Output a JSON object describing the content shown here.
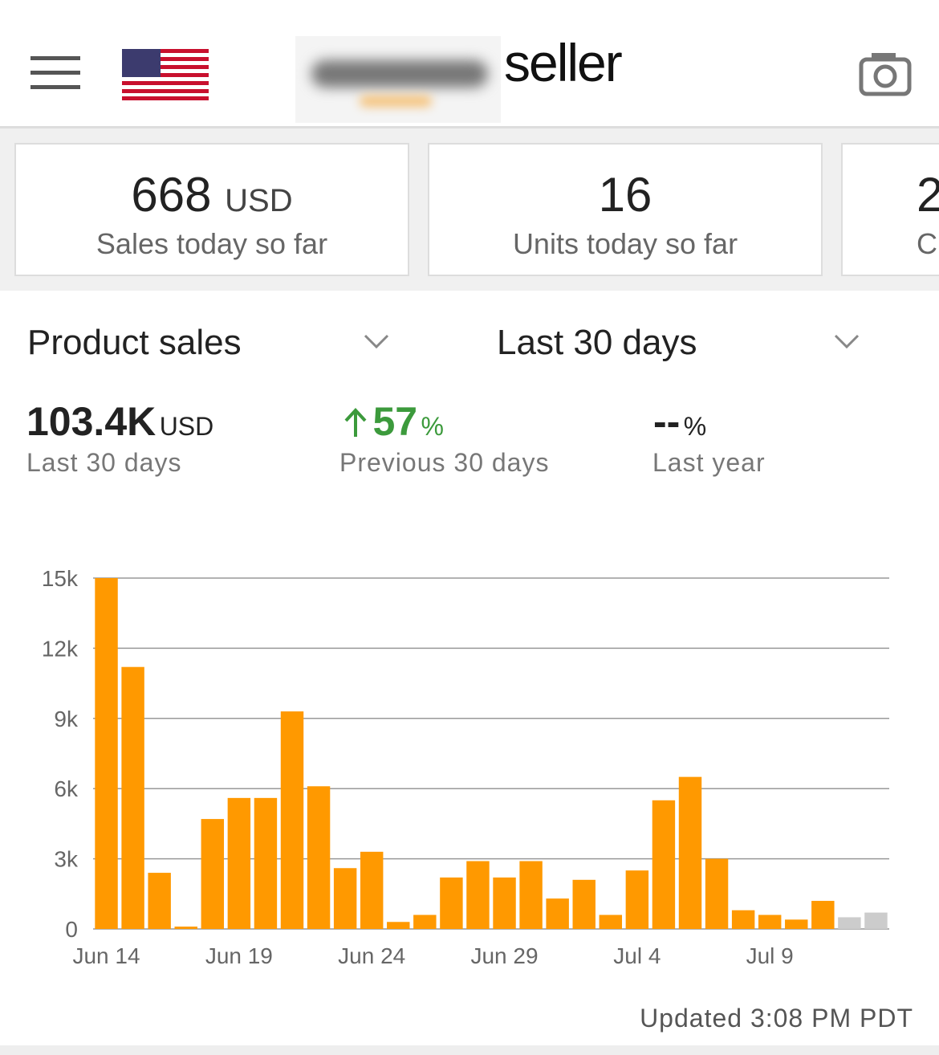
{
  "header": {
    "brand": "seller"
  },
  "cards": [
    {
      "value": "668",
      "unit": "USD",
      "label": "Sales today so far"
    },
    {
      "value": "16",
      "label": "Units today so far"
    },
    {
      "value": "2",
      "label": "C"
    }
  ],
  "filters": {
    "metric": "Product sales",
    "period": "Last 30 days"
  },
  "summary": {
    "total": {
      "value": "103.4K",
      "unit": "USD",
      "label": "Last 30 days"
    },
    "previous": {
      "value": "57",
      "unit": "%",
      "label": "Previous 30 days"
    },
    "last_year": {
      "value": "--",
      "unit": "%",
      "label": "Last year"
    }
  },
  "chart_data": {
    "type": "bar",
    "categories": [
      "Jun 14",
      null,
      null,
      null,
      null,
      "Jun 19",
      null,
      null,
      null,
      null,
      "Jun 24",
      null,
      null,
      null,
      null,
      "Jun 29",
      null,
      null,
      null,
      null,
      "Jul 4",
      null,
      null,
      null,
      null,
      "Jul 9",
      null,
      null,
      null,
      null
    ],
    "values": [
      15000,
      11200,
      2400,
      100,
      4700,
      5600,
      5600,
      9300,
      6100,
      2600,
      3300,
      300,
      600,
      2200,
      2900,
      2200,
      2900,
      1300,
      2100,
      600,
      2500,
      5500,
      6500,
      3000,
      800,
      600,
      400,
      1200,
      500,
      700
    ],
    "colors": [
      "#ff9900",
      "#ff9900",
      "#ff9900",
      "#ff9900",
      "#ff9900",
      "#ff9900",
      "#ff9900",
      "#ff9900",
      "#ff9900",
      "#ff9900",
      "#ff9900",
      "#ff9900",
      "#ff9900",
      "#ff9900",
      "#ff9900",
      "#ff9900",
      "#ff9900",
      "#ff9900",
      "#ff9900",
      "#ff9900",
      "#ff9900",
      "#ff9900",
      "#ff9900",
      "#ff9900",
      "#ff9900",
      "#ff9900",
      "#ff9900",
      "#ff9900",
      "#cccccc",
      "#cccccc"
    ],
    "ylim": [
      0,
      15000
    ],
    "yticks": [
      0,
      {
        "value": 3000,
        "label": "3k"
      },
      {
        "value": 6000,
        "label": "6k"
      },
      {
        "value": 9000,
        "label": "9k"
      },
      {
        "value": 12000,
        "label": "12k"
      },
      {
        "value": 15000,
        "label": "15k"
      }
    ],
    "grid": true
  },
  "footer": {
    "updated": "Updated 3:08 PM PDT"
  }
}
